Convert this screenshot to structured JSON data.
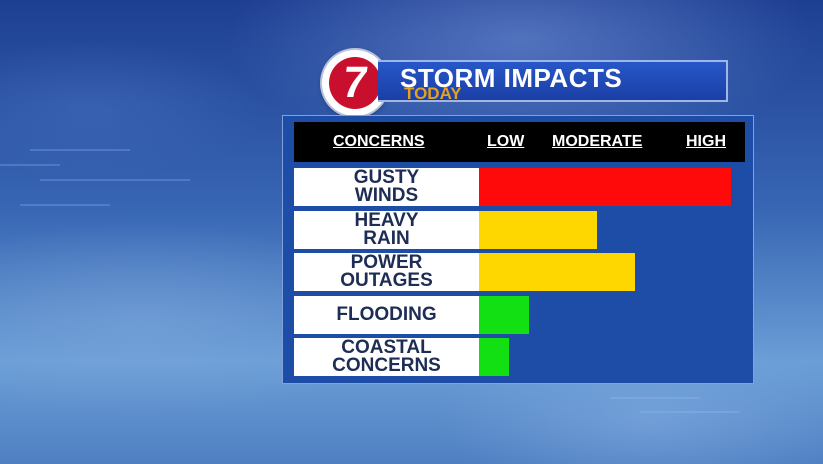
{
  "title": "STORM IMPACTS",
  "subtitle": "TODAY",
  "logo": {
    "number": "7"
  },
  "colors": {
    "high": "#ff0a0a",
    "moderate": "#ffd700",
    "low": "#12e012",
    "panel": "#1d4da6"
  },
  "chart_data": {
    "type": "bar",
    "orientation": "horizontal",
    "title": "STORM IMPACTS",
    "subtitle": "TODAY",
    "columns": [
      "CONCERNS",
      "LOW",
      "MODERATE",
      "HIGH"
    ],
    "scale": [
      "LOW",
      "MODERATE",
      "HIGH"
    ],
    "xlim": [
      0,
      1
    ],
    "categories": [
      {
        "lines": [
          "GUSTY",
          "WINDS"
        ],
        "value": 1.0,
        "level": "high"
      },
      {
        "lines": [
          "HEAVY",
          "RAIN"
        ],
        "value": 0.47,
        "level": "moderate"
      },
      {
        "lines": [
          "POWER",
          "OUTAGES"
        ],
        "value": 0.62,
        "level": "moderate"
      },
      {
        "lines": [
          "FLOODING"
        ],
        "value": 0.2,
        "level": "low"
      },
      {
        "lines": [
          "COASTAL",
          "CONCERNS"
        ],
        "value": 0.12,
        "level": "low"
      }
    ]
  }
}
